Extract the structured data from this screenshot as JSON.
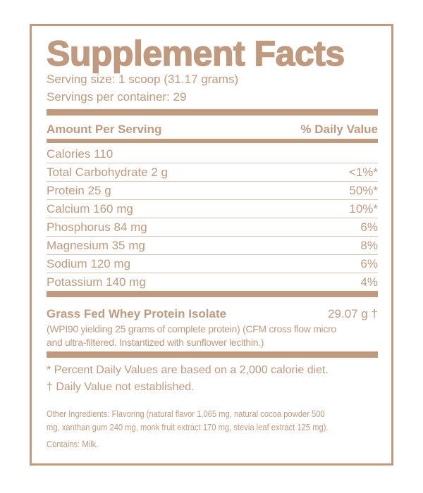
{
  "title": "Supplement Facts",
  "serving_size": "Serving size: 1 scoop (31.17 grams)",
  "servings_per_container": "Servings per container: 29",
  "header": {
    "amount": "Amount Per Serving",
    "dv": "% Daily Value"
  },
  "rows": [
    {
      "name": "Calories 110",
      "dv": ""
    },
    {
      "name": "Total Carbohydrate  2 g",
      "dv": "<1%*"
    },
    {
      "name": "Protein  25 g",
      "dv": "50%*"
    },
    {
      "name": "Calcium  160 mg",
      "dv": "10%*"
    },
    {
      "name": "Phosphorus  84 mg",
      "dv": "6%"
    },
    {
      "name": "Magnesium  35 mg",
      "dv": "8%"
    },
    {
      "name": "Sodium  120 mg",
      "dv": "6%"
    },
    {
      "name": "Potassium  140 mg",
      "dv": "4%"
    }
  ],
  "ingredient": {
    "name": "Grass Fed Whey Protein Isolate",
    "amount": "29.07 g †",
    "line1": "(WPI90 yielding 25 grams of complete protein) (CFM cross flow micro",
    "line2": "and ultra-filtered. Instantized with sunflower lecithin.)"
  },
  "notes": {
    "percent": "* Percent Daily Values are based on a 2,000 calorie diet.",
    "dagger": "† Daily Value not established."
  },
  "other_ingredients": {
    "line1": "Other Ingredients: Flavoring (natural flavor 1,065 mg, natural cocoa powder 500",
    "line2": "mg, xanthan gum 240 mg, monk fruit extract 170 mg, stevia leaf extract 125 mg).",
    "contains": "Contains: Milk."
  },
  "colors": {
    "brand": "#c09a7e"
  }
}
